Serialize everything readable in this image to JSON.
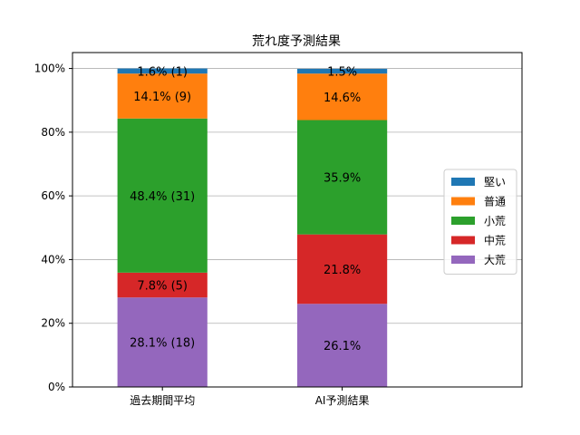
{
  "chart_data": {
    "type": "bar",
    "stacked": true,
    "title": "荒れ度予測結果",
    "xlabel": "",
    "ylabel": "",
    "categories": [
      "過去期間平均",
      "AI予測結果"
    ],
    "ylim": [
      0,
      100
    ],
    "yticks": [
      "0%",
      "20%",
      "40%",
      "60%",
      "80%",
      "100%"
    ],
    "grid": "horizontal",
    "legend_position": "right",
    "series": [
      {
        "name": "大荒",
        "color": "#9467bd",
        "values": [
          28.1,
          26.1
        ],
        "labels": [
          "28.1% (18)",
          "26.1%"
        ]
      },
      {
        "name": "中荒",
        "color": "#d62728",
        "values": [
          7.8,
          21.8
        ],
        "labels": [
          "7.8% (5)",
          "21.8%"
        ]
      },
      {
        "name": "小荒",
        "color": "#2ca02c",
        "values": [
          48.4,
          35.9
        ],
        "labels": [
          "48.4% (31)",
          "35.9%"
        ]
      },
      {
        "name": "普通",
        "color": "#ff7f0e",
        "values": [
          14.1,
          14.6
        ],
        "labels": [
          "14.1% (9)",
          "14.6%"
        ]
      },
      {
        "name": "堅い",
        "color": "#1f77b4",
        "values": [
          1.6,
          1.5
        ],
        "labels": [
          "1.6% (1)",
          "1.5%"
        ]
      }
    ],
    "legend_order": [
      "堅い",
      "普通",
      "小荒",
      "中荒",
      "大荒"
    ]
  }
}
